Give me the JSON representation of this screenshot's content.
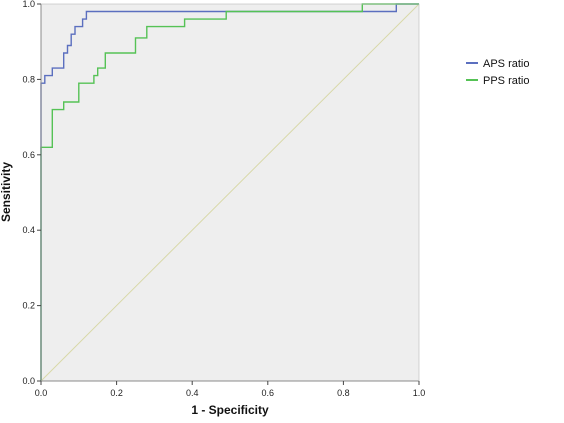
{
  "chart_data": {
    "type": "line",
    "title": "",
    "xlabel": "1 - Specificity",
    "ylabel": "Sensitivity",
    "xlim": [
      0,
      1
    ],
    "ylim": [
      0,
      1
    ],
    "x_ticks": [
      "0.0",
      "0.2",
      "0.4",
      "0.6",
      "0.8",
      "1.0"
    ],
    "y_ticks": [
      "0.0",
      "0.2",
      "0.4",
      "0.6",
      "0.8",
      "1.0"
    ],
    "grid": false,
    "legend_position": "right",
    "reference_line": {
      "x": [
        0,
        1
      ],
      "y": [
        0,
        1
      ],
      "color": "#d8d8a8"
    },
    "series": [
      {
        "name": "APS ratio",
        "color": "#5b6fbf",
        "x": [
          0,
          0,
          0.01,
          0.01,
          0.03,
          0.03,
          0.04,
          0.04,
          0.06,
          0.06,
          0.07,
          0.07,
          0.08,
          0.08,
          0.09,
          0.09,
          0.1,
          0.1,
          0.11,
          0.11,
          0.12,
          0.12,
          0.94,
          0.94,
          1.0
        ],
        "y": [
          0,
          0.79,
          0.79,
          0.81,
          0.81,
          0.83,
          0.83,
          0.83,
          0.83,
          0.87,
          0.87,
          0.89,
          0.89,
          0.92,
          0.92,
          0.94,
          0.94,
          0.94,
          0.94,
          0.96,
          0.96,
          0.98,
          0.98,
          1.0,
          1.0
        ]
      },
      {
        "name": "PPS ratio",
        "color": "#55c255",
        "x": [
          0,
          0,
          0.03,
          0.03,
          0.04,
          0.04,
          0.06,
          0.06,
          0.1,
          0.1,
          0.14,
          0.14,
          0.15,
          0.15,
          0.17,
          0.17,
          0.25,
          0.25,
          0.26,
          0.26,
          0.28,
          0.28,
          0.38,
          0.38,
          0.49,
          0.49,
          0.85,
          0.85,
          1.0
        ],
        "y": [
          0,
          0.62,
          0.62,
          0.72,
          0.72,
          0.72,
          0.72,
          0.74,
          0.74,
          0.79,
          0.79,
          0.81,
          0.81,
          0.83,
          0.83,
          0.87,
          0.87,
          0.91,
          0.91,
          0.91,
          0.91,
          0.94,
          0.94,
          0.96,
          0.96,
          0.98,
          0.98,
          1.0,
          1.0
        ]
      }
    ]
  },
  "colors": {
    "plot_background": "#eeeeee",
    "axis": "#444444"
  }
}
